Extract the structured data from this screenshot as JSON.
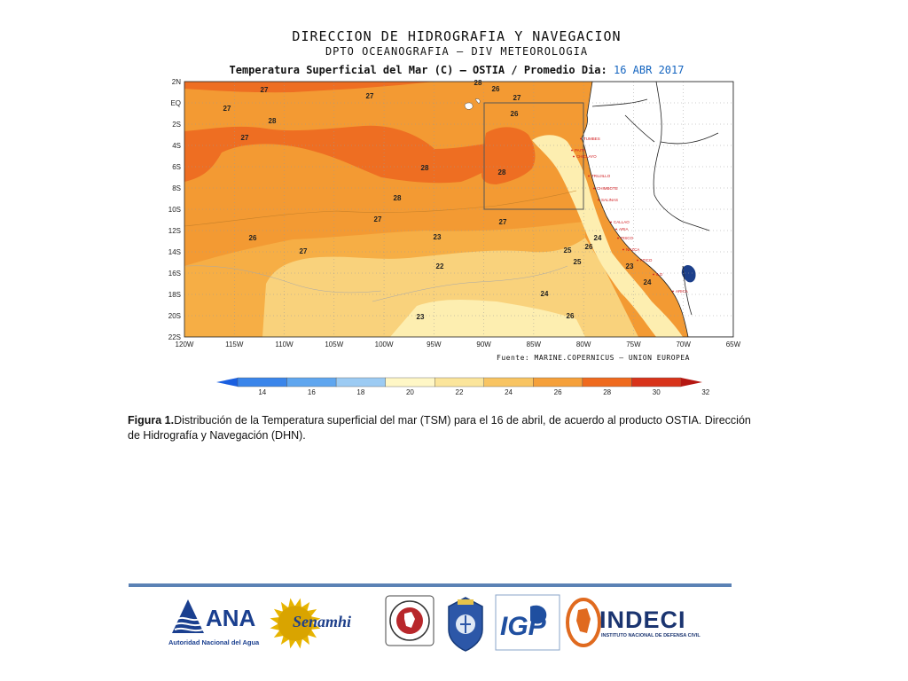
{
  "header": {
    "title": "DIRECCION DE HIDROGRAFIA Y NAVEGACION",
    "subtitle": "DPTO OCEANOGRAFIA – DIV METEOROLOGIA",
    "map_title_prefix": "Temperatura Superficial del Mar (C) – OSTIA / Promedio Dia:",
    "map_title_date": "16 ABR 2017"
  },
  "map": {
    "lon_labels": [
      "120W",
      "115W",
      "110W",
      "105W",
      "100W",
      "95W",
      "90W",
      "85W",
      "80W",
      "75W",
      "70W",
      "65W"
    ],
    "lat_labels": [
      "2N",
      "EQ",
      "2S",
      "4S",
      "6S",
      "8S",
      "10S",
      "12S",
      "14S",
      "16S",
      "18S",
      "20S",
      "22S"
    ],
    "isotherm_labels": [
      "28",
      "27",
      "26",
      "27",
      "27",
      "27",
      "26",
      "28",
      "27",
      "28",
      "28",
      "28",
      "27",
      "27",
      "26",
      "23",
      "24",
      "26",
      "25",
      "25",
      "22",
      "23",
      "24",
      "24",
      "23",
      "26",
      "27"
    ],
    "cities": [
      "TUMBES",
      "PAITA",
      "CHICLAYO",
      "TRUJILLO",
      "CHIMBOTE",
      "SALINAS",
      "CALLAO",
      "ARIA",
      "PISCO",
      "NAZCA",
      "ATICO",
      "ILO",
      "ARICA"
    ],
    "colorbar_ticks": [
      "14",
      "16",
      "18",
      "20",
      "22",
      "24",
      "26",
      "28",
      "30",
      "32"
    ],
    "colorbar_colors": [
      "#1a5fe0",
      "#3a85ea",
      "#5fa6ef",
      "#9ccbf3",
      "#fff7c6",
      "#fbe59b",
      "#f8c462",
      "#f5a03a",
      "#ef6a1e",
      "#d8331a",
      "#b51812"
    ],
    "sea_colors": {
      "t22": "#fdeeb0",
      "t24": "#f9d27c",
      "t26": "#f6ae45",
      "t27": "#f39a33",
      "t28": "#ee6e22"
    },
    "source": "Fuente: MARINE.COPERNICUS – UNION EUROPEA"
  },
  "caption": {
    "label": "Figura 1.",
    "text": "Distribución de la Temperatura superficial del mar (TSM) para el 16 de abril, de acuerdo al producto OSTIA. Dirección de Hidrografía y Navegación (DHN)."
  },
  "logos": {
    "ana": {
      "word": "ANA",
      "sub": "Autoridad Nacional del Agua"
    },
    "senamhi": {
      "word": "Senamhi"
    },
    "igp": {
      "word": "IGP"
    },
    "indeci": {
      "word": "INDECI",
      "sub": "INSTITUTO NACIONAL DE DEFENSA CIVIL"
    }
  }
}
